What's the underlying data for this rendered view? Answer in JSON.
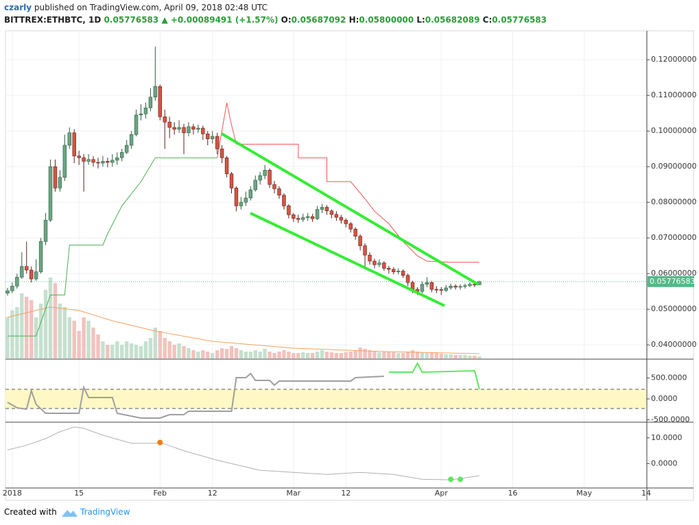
{
  "header": {
    "author": "czarly",
    "published": "published on TradingView.com, April 09, 2018 02:48 UTC",
    "symbol": "BITTREX:ETHBTC, 1D",
    "last": "0.05776583",
    "arrow": "▲",
    "change": "+0.00089491 (+1.57%)",
    "ohlc": [
      {
        "label": "O:",
        "value": "0.05687092"
      },
      {
        "label": "H:",
        "value": "0.05800000"
      },
      {
        "label": "L:",
        "value": "0.05682089"
      },
      {
        "label": "C:",
        "value": "0.05776583"
      }
    ]
  },
  "chart_data": [
    {
      "type": "candlestick",
      "x": [
        "2017-12-31",
        "2018-01-01",
        "2018-01-02",
        "2018-01-03",
        "2018-01-04",
        "2018-01-05",
        "2018-01-06",
        "2018-01-07",
        "2018-01-08",
        "2018-01-09",
        "2018-01-10",
        "2018-01-11",
        "2018-01-12",
        "2018-01-13",
        "2018-01-14",
        "2018-01-15",
        "2018-01-16",
        "2018-01-17",
        "2018-01-18",
        "2018-01-19",
        "2018-01-20",
        "2018-01-21",
        "2018-01-22",
        "2018-01-23",
        "2018-01-24",
        "2018-01-25",
        "2018-01-26",
        "2018-01-27",
        "2018-01-28",
        "2018-01-29",
        "2018-01-30",
        "2018-01-31",
        "2018-02-01",
        "2018-02-02",
        "2018-02-03",
        "2018-02-04",
        "2018-02-05",
        "2018-02-06",
        "2018-02-07",
        "2018-02-08",
        "2018-02-09",
        "2018-02-10",
        "2018-02-11",
        "2018-02-12",
        "2018-02-13",
        "2018-02-14",
        "2018-02-15",
        "2018-02-16",
        "2018-02-17",
        "2018-02-18",
        "2018-02-19",
        "2018-02-20",
        "2018-02-21",
        "2018-02-22",
        "2018-02-23",
        "2018-02-24",
        "2018-02-25",
        "2018-02-26",
        "2018-02-27",
        "2018-02-28",
        "2018-03-01",
        "2018-03-02",
        "2018-03-03",
        "2018-03-04",
        "2018-03-05",
        "2018-03-06",
        "2018-03-07",
        "2018-03-08",
        "2018-03-09",
        "2018-03-10",
        "2018-03-11",
        "2018-03-12",
        "2018-03-13",
        "2018-03-14",
        "2018-03-15",
        "2018-03-16",
        "2018-03-17",
        "2018-03-18",
        "2018-03-19",
        "2018-03-20",
        "2018-03-21",
        "2018-03-22",
        "2018-03-23",
        "2018-03-24",
        "2018-03-25",
        "2018-03-26",
        "2018-03-27",
        "2018-03-28",
        "2018-03-29",
        "2018-03-30",
        "2018-03-31",
        "2018-04-01",
        "2018-04-02",
        "2018-04-03",
        "2018-04-04",
        "2018-04-05",
        "2018-04-06",
        "2018-04-07",
        "2018-04-08",
        "2018-04-09"
      ],
      "open": [
        0.0545,
        0.0552,
        0.0565,
        0.059,
        0.062,
        0.061,
        0.0585,
        0.0605,
        0.069,
        0.075,
        0.09,
        0.084,
        0.087,
        0.096,
        0.0995,
        0.093,
        0.0925,
        0.0915,
        0.092,
        0.0912,
        0.091,
        0.0915,
        0.0912,
        0.0918,
        0.0925,
        0.094,
        0.096,
        0.099,
        0.1045,
        0.1048,
        0.1065,
        0.1095,
        0.1125,
        0.104,
        0.1025,
        0.101,
        0.1005,
        0.101,
        0.0995,
        0.1012,
        0.1005,
        0.1008,
        0.0992,
        0.0978,
        0.0985,
        0.095,
        0.0925,
        0.088,
        0.084,
        0.079,
        0.08,
        0.0812,
        0.0835,
        0.0862,
        0.0875,
        0.089,
        0.085,
        0.0838,
        0.082,
        0.079,
        0.0765,
        0.0755,
        0.0752,
        0.0757,
        0.076,
        0.0754,
        0.078,
        0.0786,
        0.0776,
        0.0766,
        0.0758,
        0.075,
        0.074,
        0.0725,
        0.0705,
        0.0678,
        0.0652,
        0.0635,
        0.0625,
        0.063,
        0.0615,
        0.0612,
        0.0605,
        0.0607,
        0.0595,
        0.0575,
        0.0556,
        0.055,
        0.057,
        0.0575,
        0.0556,
        0.0555,
        0.0553,
        0.056,
        0.0565,
        0.0562,
        0.0564,
        0.0566,
        0.057,
        0.05687092
      ],
      "high": [
        0.056,
        0.0575,
        0.06,
        0.066,
        0.069,
        0.062,
        0.064,
        0.07,
        0.077,
        0.092,
        0.092,
        0.089,
        0.099,
        0.101,
        0.1005,
        0.0945,
        0.0935,
        0.0935,
        0.093,
        0.0925,
        0.093,
        0.0925,
        0.0935,
        0.094,
        0.095,
        0.0975,
        0.1,
        0.106,
        0.1075,
        0.108,
        0.112,
        0.1237,
        0.113,
        0.106,
        0.104,
        0.1025,
        0.103,
        0.102,
        0.1025,
        0.102,
        0.1018,
        0.1015,
        0.1,
        0.1,
        0.0995,
        0.096,
        0.093,
        0.0885,
        0.0845,
        0.0815,
        0.083,
        0.0845,
        0.0875,
        0.0885,
        0.0905,
        0.0895,
        0.086,
        0.0845,
        0.0825,
        0.0795,
        0.077,
        0.0765,
        0.0768,
        0.077,
        0.0768,
        0.079,
        0.0795,
        0.0792,
        0.078,
        0.0775,
        0.0765,
        0.0755,
        0.0745,
        0.073,
        0.071,
        0.0685,
        0.066,
        0.0642,
        0.064,
        0.0635,
        0.0622,
        0.0618,
        0.0615,
        0.0612,
        0.06,
        0.058,
        0.0562,
        0.0578,
        0.059,
        0.058,
        0.0565,
        0.0562,
        0.0568,
        0.0572,
        0.057,
        0.057,
        0.0572,
        0.0576,
        0.0574,
        0.058
      ],
      "low": [
        0.0538,
        0.0545,
        0.0558,
        0.0585,
        0.06,
        0.0575,
        0.058,
        0.06,
        0.068,
        0.0745,
        0.083,
        0.083,
        0.086,
        0.095,
        0.091,
        0.0905,
        0.083,
        0.0905,
        0.09,
        0.0895,
        0.09,
        0.0898,
        0.09,
        0.0905,
        0.0915,
        0.0935,
        0.095,
        0.0985,
        0.103,
        0.1035,
        0.1055,
        0.1085,
        0.103,
        0.095,
        0.098,
        0.099,
        0.0995,
        0.0935,
        0.0985,
        0.099,
        0.0995,
        0.0975,
        0.096,
        0.0965,
        0.0935,
        0.091,
        0.087,
        0.0825,
        0.0775,
        0.078,
        0.079,
        0.0805,
        0.083,
        0.085,
        0.0865,
        0.084,
        0.0825,
        0.081,
        0.078,
        0.0755,
        0.0745,
        0.0742,
        0.0745,
        0.0748,
        0.0745,
        0.075,
        0.077,
        0.0765,
        0.0755,
        0.0748,
        0.074,
        0.073,
        0.0715,
        0.0695,
        0.0665,
        0.062,
        0.0625,
        0.0615,
        0.0618,
        0.0608,
        0.06,
        0.0598,
        0.0598,
        0.0588,
        0.0565,
        0.0545,
        0.054,
        0.0545,
        0.0562,
        0.0548,
        0.0545,
        0.054,
        0.0548,
        0.0555,
        0.0555,
        0.0555,
        0.0558,
        0.0562,
        0.0562,
        0.05682089
      ],
      "close": [
        0.0552,
        0.0565,
        0.059,
        0.062,
        0.061,
        0.0585,
        0.0605,
        0.069,
        0.075,
        0.09,
        0.084,
        0.087,
        0.096,
        0.0995,
        0.093,
        0.0925,
        0.0915,
        0.092,
        0.0912,
        0.091,
        0.0915,
        0.0912,
        0.0918,
        0.0925,
        0.094,
        0.096,
        0.099,
        0.1045,
        0.1048,
        0.1065,
        0.1095,
        0.1125,
        0.104,
        0.1025,
        0.101,
        0.1005,
        0.101,
        0.0995,
        0.1012,
        0.1005,
        0.1008,
        0.0992,
        0.0978,
        0.0985,
        0.095,
        0.0925,
        0.088,
        0.084,
        0.079,
        0.08,
        0.0812,
        0.0835,
        0.0862,
        0.0875,
        0.089,
        0.085,
        0.0838,
        0.082,
        0.079,
        0.0765,
        0.0755,
        0.0752,
        0.0757,
        0.076,
        0.0754,
        0.078,
        0.0786,
        0.0776,
        0.0766,
        0.0758,
        0.075,
        0.074,
        0.0725,
        0.0705,
        0.0678,
        0.0652,
        0.0635,
        0.0625,
        0.063,
        0.0615,
        0.0612,
        0.0605,
        0.0607,
        0.0595,
        0.0575,
        0.0556,
        0.055,
        0.057,
        0.0575,
        0.0556,
        0.0555,
        0.0553,
        0.056,
        0.0565,
        0.0562,
        0.0564,
        0.0566,
        0.057,
        0.05687092,
        0.05776583
      ],
      "up_color": "#6ba583",
      "down_color": "#d75442",
      "volume": [
        60,
        70,
        75,
        95,
        90,
        85,
        60,
        80,
        100,
        118,
        110,
        80,
        75,
        60,
        55,
        40,
        60,
        55,
        45,
        35,
        25,
        20,
        20,
        25,
        20,
        25,
        22,
        20,
        18,
        25,
        30,
        45,
        40,
        30,
        25,
        20,
        22,
        18,
        15,
        12,
        10,
        12,
        10,
        8,
        12,
        15,
        14,
        18,
        15,
        12,
        10,
        10,
        12,
        10,
        14,
        10,
        8,
        10,
        12,
        10,
        8,
        8,
        9,
        8,
        8,
        10,
        12,
        10,
        9,
        8,
        8,
        9,
        10,
        12,
        16,
        14,
        12,
        10,
        9,
        10,
        10,
        9,
        8,
        8,
        10,
        12,
        10,
        9,
        8,
        8,
        8,
        7,
        6,
        6,
        5,
        5,
        5,
        4,
        4,
        3
      ],
      "volume_up_color": "#c5e0cf",
      "volume_down_color": "#f3c2bd",
      "volume_ma": {
        "color": "#f5a15b",
        "x": [
          "2017-12-31",
          "2018-01-09",
          "2018-01-15",
          "2018-01-22",
          "2018-01-31",
          "2018-02-12",
          "2018-03-01",
          "2018-03-20",
          "2018-04-09"
        ],
        "values": [
          60,
          75,
          70,
          55,
          40,
          25,
          15,
          10,
          7
        ]
      },
      "lines": [
        {
          "color": "#ef5350",
          "x": [
            "2018-02-13",
            "2018-02-15",
            "2018-02-16",
            "2018-02-17",
            "2018-03-02",
            "2018-03-02",
            "2018-03-08",
            "2018-03-08",
            "2018-03-13",
            "2018-03-16",
            "2018-03-18",
            "2018-03-21",
            "2018-03-24",
            "2018-03-27",
            "2018-03-29",
            "2018-04-03",
            "2018-04-09"
          ],
          "values": [
            0.0925,
            0.1079,
            0.1017,
            0.0963,
            0.0963,
            0.0925,
            0.0925,
            0.0858,
            0.0858,
            0.081,
            0.0775,
            0.074,
            0.069,
            0.065,
            0.0635,
            0.0632,
            0.0632
          ]
        },
        {
          "color": "#4caf50",
          "x": [
            "2017-12-31",
            "2018-01-06",
            "2018-01-09",
            "2018-01-12",
            "2018-01-13",
            "2018-01-20",
            "2018-01-21",
            "2018-01-24",
            "2018-01-28",
            "2018-01-31",
            "2018-02-13"
          ],
          "values": [
            0.0425,
            0.0425,
            0.054,
            0.054,
            0.068,
            0.068,
            0.0712,
            0.079,
            0.0858,
            0.0925,
            0.0925
          ]
        }
      ],
      "ylim": [
        0.0362,
        0.1281
      ],
      "yticks": [
        {
          "value": 0.04,
          "label": "0.04000000"
        },
        {
          "value": 0.05,
          "label": "0.05000000"
        },
        {
          "value": 0.06,
          "label": "0.06000000"
        },
        {
          "value": 0.07,
          "label": "0.07000000"
        },
        {
          "value": 0.08,
          "label": "0.08000000"
        },
        {
          "value": 0.09,
          "label": "0.09000000"
        },
        {
          "value": 0.1,
          "label": "0.10000000"
        },
        {
          "value": 0.11,
          "label": "0.11000000"
        },
        {
          "value": 0.12,
          "label": "0.12000000"
        }
      ],
      "grid": true,
      "price_label": "0.05776583",
      "price_label_color": "#53b987"
    },
    {
      "type": "line",
      "ylim": [
        -541,
        934
      ],
      "yticks": [
        {
          "value": 500,
          "label": "500.0000"
        },
        {
          "value": 0,
          "label": "0.0000"
        },
        {
          "value": -500,
          "label": "-500.0000"
        }
      ],
      "band": [
        -230,
        230
      ],
      "band_color": "#fff8c4",
      "series": [
        {
          "color": "#9e9e9e",
          "x": [
            "2017-12-31",
            "2018-01-02",
            "2018-01-04",
            "2018-01-05",
            "2018-01-06",
            "2018-01-08",
            "2018-01-15",
            "2018-01-16",
            "2018-01-17",
            "2018-01-22",
            "2018-01-23",
            "2018-01-28",
            "2018-02-01",
            "2018-02-03",
            "2018-02-06",
            "2018-02-07",
            "2018-02-16",
            "2018-02-17",
            "2018-02-19",
            "2018-02-20",
            "2018-02-21",
            "2018-02-24",
            "2018-02-25",
            "2018-02-26",
            "2018-03-13",
            "2018-03-14",
            "2018-03-20"
          ],
          "values": [
            -82,
            -213,
            -246,
            197,
            -131,
            -344,
            -344,
            279,
            33,
            33,
            -344,
            -459,
            -459,
            -377,
            -377,
            -295,
            -295,
            508,
            508,
            607,
            443,
            443,
            328,
            426,
            426,
            508,
            541
          ]
        },
        {
          "color": "#5ee85e",
          "x": [
            "2018-03-21",
            "2018-03-26",
            "2018-03-27",
            "2018-03-28",
            "2018-04-08",
            "2018-04-09"
          ],
          "values": [
            639,
            639,
            852,
            639,
            672,
            230
          ]
        }
      ]
    },
    {
      "type": "line",
      "ylim": [
        -9.2,
        15.8
      ],
      "yticks": [
        {
          "value": 10,
          "label": "10.0000"
        },
        {
          "value": 0,
          "label": "0.0000"
        }
      ],
      "series": [
        {
          "color": "#b0b0b0",
          "x": [
            "2017-12-31",
            "2018-01-04",
            "2018-01-08",
            "2018-01-11",
            "2018-01-14",
            "2018-01-16",
            "2018-01-20",
            "2018-01-26",
            "2018-02-01",
            "2018-02-02",
            "2018-02-06",
            "2018-02-13",
            "2018-02-22",
            "2018-03-01",
            "2018-03-08",
            "2018-03-15",
            "2018-03-22",
            "2018-03-28",
            "2018-04-03",
            "2018-04-09"
          ],
          "values": [
            5.3,
            7.1,
            9.7,
            12.4,
            14.2,
            13.7,
            11.0,
            7.9,
            7.9,
            7.6,
            5.0,
            1.3,
            -2.6,
            -3.4,
            -4.2,
            -3.4,
            -4.2,
            -6.1,
            -6.3,
            -4.7
          ]
        }
      ],
      "markers": {
        "x": [
          "2018-02-01",
          "2018-04-03",
          "2018-04-05"
        ],
        "values": [
          8.2,
          -6.1,
          -6.1
        ],
        "colors": [
          "#f57c00",
          "#5ee85e",
          "#5ee85e"
        ]
      },
      "xlim": [
        "2017-12-30",
        "2018-05-14"
      ],
      "xticks": [
        {
          "value": "2018-01-01",
          "label": "2018"
        },
        {
          "value": "2018-01-15",
          "label": "15"
        },
        {
          "value": "2018-02-01",
          "label": "Feb"
        },
        {
          "value": "2018-02-12",
          "label": "12"
        },
        {
          "value": "2018-03-01",
          "label": "Mar"
        },
        {
          "value": "2018-03-12",
          "label": "12"
        },
        {
          "value": "2018-04-01",
          "label": "Apr"
        },
        {
          "value": "2018-04-16",
          "label": "16"
        },
        {
          "value": "2018-05-01",
          "label": "May"
        },
        {
          "value": "2018-05-14",
          "label": "14"
        }
      ]
    }
  ],
  "footer": {
    "created": "Created with",
    "brand": "TradingView"
  }
}
